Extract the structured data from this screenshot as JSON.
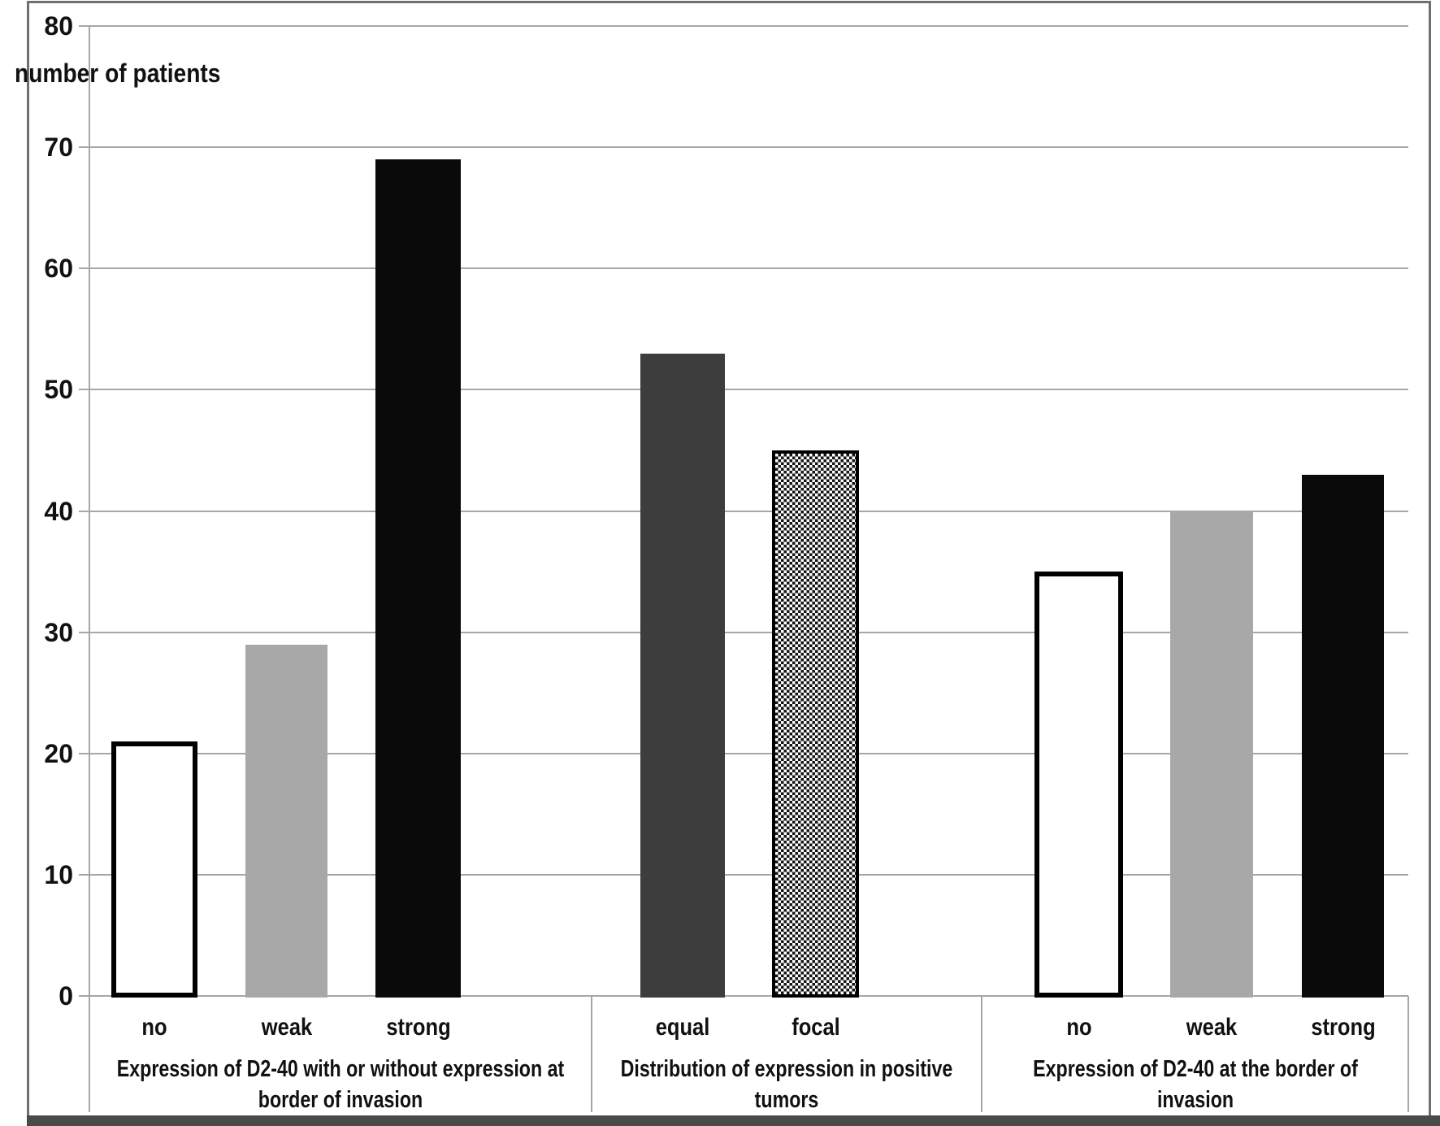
{
  "chart_data": {
    "type": "bar",
    "title": "",
    "ylabel": "number of patients",
    "xlabel": "",
    "ylim": [
      0,
      80
    ],
    "yticks": [
      0,
      10,
      20,
      30,
      40,
      50,
      60,
      70,
      80
    ],
    "grid": true,
    "legend": "none",
    "groups": [
      {
        "label": "Expression of D2-40 with or without expression at border of invasion",
        "label_lines": [
          "Expression of D2-40 with or without expression at",
          "border of invasion"
        ],
        "categories": [
          "no",
          "weak",
          "strong"
        ],
        "values": [
          21,
          29,
          69
        ],
        "bar_styles": [
          "white-outlined",
          "light-gray",
          "black"
        ]
      },
      {
        "label": "Distribution of expression in positive tumors",
        "label_lines": [
          "Distribution of expression in positive",
          "tumors"
        ],
        "categories": [
          "equal",
          "focal"
        ],
        "values": [
          53,
          45
        ],
        "bar_styles": [
          "dark-gray",
          "checkered"
        ]
      },
      {
        "label": "Expression of D2-40 at the border of invasion",
        "label_lines": [
          "Expression of D2-40 at the border of",
          "invasion"
        ],
        "categories": [
          "no",
          "weak",
          "strong"
        ],
        "values": [
          35,
          40,
          43
        ],
        "bar_styles": [
          "white-outlined",
          "light-gray",
          "black"
        ]
      }
    ],
    "colors": {
      "background": "#ffffff",
      "text": "#111111",
      "gridline": "#a6a6a6",
      "frame": "#6f6f6f",
      "bottom_strip": "#4a4a4a",
      "bar_white": "#ffffff",
      "bar_outline": "#000000",
      "bar_light_gray": "#a8a8a8",
      "bar_dark_gray": "#3d3d3d",
      "bar_black": "#0a0a0a",
      "checker_dark": "#141414"
    }
  }
}
